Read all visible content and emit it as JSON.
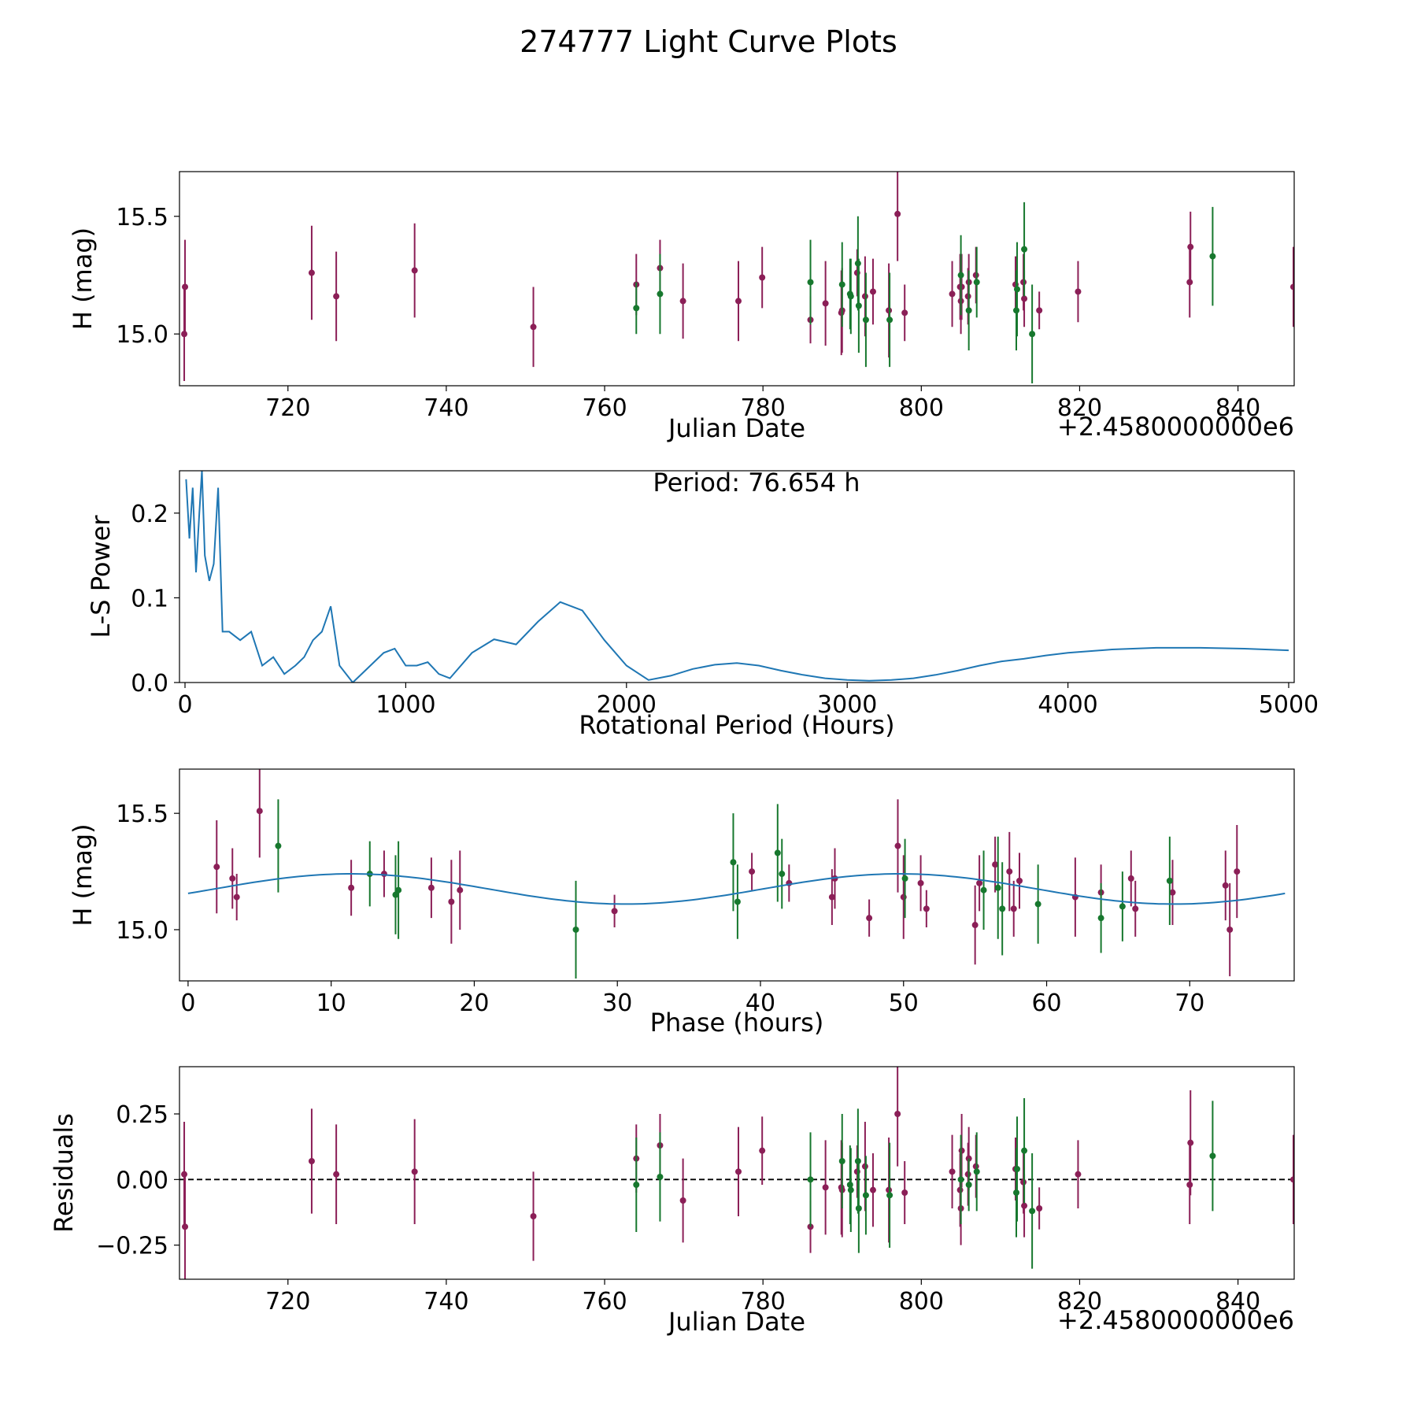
{
  "figure": {
    "title": "274777 Light Curve Plots"
  },
  "colors": {
    "r": "#8b1f57",
    "g": "#17782e",
    "curve": "#1f77b4",
    "zero": "#000000"
  },
  "chart_data": [
    {
      "name": "light-curve",
      "type": "scatter",
      "xlabel": "Julian Date",
      "ylabel": "H (mag)",
      "offset_text": "+2.4580000000e6",
      "xlim": [
        706.3,
        847.1
      ],
      "ylim": [
        14.78,
        15.69
      ],
      "xticks": [
        720,
        740,
        760,
        780,
        800,
        820,
        840
      ],
      "yticks": [
        15.0,
        15.5
      ],
      "tick_labels_x": [
        "720",
        "740",
        "760",
        "780",
        "800",
        "820",
        "840"
      ],
      "tick_labels_y": [
        "15.0",
        "15.5"
      ],
      "series": [
        {
          "name": "r",
          "color_key": "r",
          "x": [
            706.9,
            707.0,
            723.0,
            726.1,
            736.0,
            751.0,
            764.0,
            767.0,
            769.9,
            776.9,
            779.9,
            786.0,
            787.9,
            789.9,
            790.0,
            791.9,
            792.9,
            793.9,
            795.9,
            797.0,
            797.9,
            803.9,
            804.9,
            805.0,
            805.1,
            805.9,
            806.0,
            806.9,
            811.9,
            812.9,
            813.0,
            814.9,
            819.8,
            833.9,
            834.0,
            847.0
          ],
          "y": [
            15.0,
            15.2,
            15.26,
            15.16,
            15.27,
            15.03,
            15.21,
            15.28,
            15.14,
            15.14,
            15.24,
            15.06,
            15.13,
            15.09,
            15.1,
            15.26,
            15.16,
            15.18,
            15.1,
            15.51,
            15.09,
            15.17,
            15.2,
            15.14,
            15.2,
            15.16,
            15.22,
            15.25,
            15.21,
            15.22,
            15.15,
            15.1,
            15.18,
            15.22,
            15.37,
            15.2
          ],
          "err": [
            0.2,
            0.2,
            0.2,
            0.19,
            0.2,
            0.17,
            0.13,
            0.12,
            0.16,
            0.17,
            0.13,
            0.1,
            0.18,
            0.18,
            0.18,
            0.1,
            0.17,
            0.14,
            0.2,
            0.2,
            0.12,
            0.14,
            0.14,
            0.14,
            0.14,
            0.12,
            0.12,
            0.12,
            0.12,
            0.12,
            0.12,
            0.08,
            0.13,
            0.15,
            0.15,
            0.17
          ]
        },
        {
          "name": "g",
          "color_key": "g",
          "x": [
            764.0,
            767.0,
            786.0,
            790.0,
            791.0,
            791.1,
            792.0,
            792.1,
            793.0,
            796.0,
            805.0,
            806.0,
            807.0,
            812.0,
            812.1,
            813.0,
            814.0,
            836.8
          ],
          "y": [
            15.11,
            15.17,
            15.22,
            15.21,
            15.17,
            15.16,
            15.3,
            15.12,
            15.06,
            15.06,
            15.25,
            15.1,
            15.22,
            15.1,
            15.19,
            15.36,
            15.0,
            15.33
          ],
          "err": [
            0.11,
            0.17,
            0.18,
            0.18,
            0.15,
            0.16,
            0.2,
            0.2,
            0.2,
            0.2,
            0.17,
            0.17,
            0.15,
            0.17,
            0.2,
            0.2,
            0.21,
            0.21
          ]
        }
      ]
    },
    {
      "name": "periodogram",
      "type": "line",
      "xlabel": "Rotational Period (Hours)",
      "ylabel": "L-S Power",
      "xlim": [
        -25,
        5025
      ],
      "ylim": [
        0,
        0.25
      ],
      "xticks": [
        0,
        1000,
        2000,
        3000,
        4000,
        5000
      ],
      "yticks": [
        0.0,
        0.1,
        0.2
      ],
      "tick_labels_x": [
        "0",
        "1000",
        "2000",
        "3000",
        "4000",
        "5000"
      ],
      "tick_labels_y": [
        "0.0",
        "0.1",
        "0.2"
      ],
      "annotation": "Period: 76.654 h",
      "series": [
        {
          "name": "LS power",
          "color_key": "curve",
          "x": [
            5,
            20,
            35,
            50,
            65,
            76.654,
            90,
            110,
            130,
            150,
            170,
            200,
            250,
            300,
            350,
            400,
            450,
            500,
            540,
            580,
            620,
            660,
            700,
            760,
            820,
            900,
            950,
            1000,
            1050,
            1100,
            1150,
            1200,
            1300,
            1400,
            1500,
            1600,
            1700,
            1800,
            1900,
            2000,
            2100,
            2200,
            2300,
            2400,
            2500,
            2600,
            2700,
            2800,
            2900,
            3000,
            3100,
            3200,
            3300,
            3400,
            3500,
            3600,
            3700,
            3800,
            3900,
            4000,
            4200,
            4400,
            4600,
            4800,
            5000
          ],
          "y": [
            0.24,
            0.17,
            0.23,
            0.13,
            0.2,
            0.25,
            0.15,
            0.12,
            0.14,
            0.23,
            0.06,
            0.06,
            0.05,
            0.06,
            0.02,
            0.03,
            0.01,
            0.02,
            0.03,
            0.05,
            0.06,
            0.09,
            0.02,
            0.0,
            0.015,
            0.035,
            0.04,
            0.02,
            0.02,
            0.024,
            0.01,
            0.005,
            0.035,
            0.051,
            0.045,
            0.072,
            0.095,
            0.085,
            0.05,
            0.02,
            0.003,
            0.008,
            0.016,
            0.021,
            0.023,
            0.02,
            0.014,
            0.009,
            0.005,
            0.003,
            0.002,
            0.003,
            0.005,
            0.009,
            0.014,
            0.02,
            0.025,
            0.028,
            0.032,
            0.035,
            0.039,
            0.041,
            0.041,
            0.04,
            0.038
          ]
        }
      ]
    },
    {
      "name": "phase-fold",
      "type": "scatter",
      "xlabel": "Phase (hours)",
      "ylabel": "H (mag)",
      "xlim": [
        -0.6,
        77.3
      ],
      "ylim": [
        14.78,
        15.69
      ],
      "xticks": [
        0,
        10,
        20,
        30,
        40,
        50,
        60,
        70
      ],
      "yticks": [
        15.0,
        15.5
      ],
      "tick_labels_x": [
        "0",
        "10",
        "20",
        "30",
        "40",
        "50",
        "60",
        "70"
      ],
      "tick_labels_y": [
        "15.0",
        "15.5"
      ],
      "series": [
        {
          "name": "r",
          "color_key": "r",
          "x": [
            2.0,
            3.1,
            3.4,
            5.0,
            11.4,
            13.7,
            17.0,
            18.4,
            19.0,
            29.8,
            39.4,
            42.0,
            45.0,
            45.2,
            47.6,
            49.6,
            50.0,
            51.2,
            51.6,
            55.0,
            55.3,
            56.4,
            57.4,
            57.7,
            58.1,
            62.0,
            63.8,
            65.9,
            66.2,
            68.8,
            72.5,
            72.8,
            73.3
          ],
          "y": [
            15.27,
            15.22,
            15.14,
            15.51,
            15.18,
            15.24,
            15.18,
            15.12,
            15.17,
            15.08,
            15.25,
            15.2,
            15.14,
            15.22,
            15.05,
            15.36,
            15.14,
            15.2,
            15.09,
            15.02,
            15.2,
            15.28,
            15.25,
            15.09,
            15.21,
            15.14,
            15.16,
            15.22,
            15.09,
            15.16,
            15.19,
            15.0,
            15.25
          ],
          "err": [
            0.2,
            0.13,
            0.1,
            0.2,
            0.12,
            0.1,
            0.13,
            0.18,
            0.17,
            0.07,
            0.08,
            0.08,
            0.12,
            0.13,
            0.08,
            0.2,
            0.18,
            0.12,
            0.08,
            0.17,
            0.12,
            0.12,
            0.17,
            0.12,
            0.12,
            0.17,
            0.12,
            0.12,
            0.12,
            0.14,
            0.15,
            0.2,
            0.2
          ]
        },
        {
          "name": "g",
          "color_key": "g",
          "x": [
            6.3,
            12.7,
            14.5,
            14.7,
            27.1,
            38.1,
            38.4,
            41.2,
            41.5,
            50.1,
            55.6,
            56.6,
            56.9,
            59.4,
            63.8,
            65.3,
            68.6
          ],
          "y": [
            15.36,
            15.24,
            15.15,
            15.17,
            15.0,
            15.29,
            15.12,
            15.33,
            15.24,
            15.22,
            15.17,
            15.18,
            15.09,
            15.11,
            15.05,
            15.1,
            15.21
          ],
          "err": [
            0.2,
            0.14,
            0.17,
            0.21,
            0.21,
            0.21,
            0.16,
            0.21,
            0.15,
            0.17,
            0.17,
            0.22,
            0.2,
            0.17,
            0.15,
            0.15,
            0.19
          ]
        },
        {
          "name": "fit",
          "color_key": "curve",
          "type": "line",
          "mean": 15.175,
          "amp1": 0.065,
          "phase1": -0.3,
          "amp2": 0.0,
          "phase2": 0.0
        }
      ]
    },
    {
      "name": "residuals",
      "type": "scatter",
      "xlabel": "Julian Date",
      "ylabel": "Residuals",
      "offset_text": "+2.4580000000e6",
      "xlim": [
        706.3,
        847.1
      ],
      "ylim": [
        -0.38,
        0.43
      ],
      "xticks": [
        720,
        740,
        760,
        780,
        800,
        820,
        840
      ],
      "yticks": [
        0.25,
        0.0,
        -0.25
      ],
      "tick_labels_x": [
        "720",
        "740",
        "760",
        "780",
        "800",
        "820",
        "840"
      ],
      "tick_labels_y": [
        "0.25",
        "0.00",
        "−0.25"
      ],
      "zero_line": 0,
      "series": [
        {
          "name": "r",
          "color_key": "r",
          "x": [
            706.9,
            707.0,
            723.0,
            726.1,
            736.0,
            751.0,
            764.0,
            767.0,
            769.9,
            776.9,
            779.9,
            786.0,
            787.9,
            789.9,
            790.0,
            791.9,
            792.9,
            793.9,
            795.9,
            797.0,
            797.9,
            803.9,
            804.9,
            805.0,
            805.1,
            805.9,
            806.0,
            806.9,
            811.9,
            812.9,
            813.0,
            814.9,
            819.8,
            833.9,
            834.0,
            847.0
          ],
          "y": [
            0.02,
            -0.18,
            0.07,
            0.02,
            0.03,
            -0.14,
            0.08,
            0.13,
            -0.08,
            0.03,
            0.11,
            -0.18,
            -0.03,
            -0.03,
            -0.04,
            0.03,
            0.05,
            -0.04,
            -0.04,
            0.25,
            -0.05,
            0.03,
            -0.04,
            -0.11,
            0.11,
            0.02,
            0.08,
            0.05,
            0.04,
            -0.01,
            -0.1,
            -0.11,
            0.02,
            -0.02,
            0.14,
            0.0
          ],
          "err": [
            0.2,
            0.2,
            0.2,
            0.19,
            0.2,
            0.17,
            0.13,
            0.12,
            0.16,
            0.17,
            0.13,
            0.1,
            0.18,
            0.18,
            0.18,
            0.1,
            0.17,
            0.14,
            0.2,
            0.2,
            0.12,
            0.14,
            0.14,
            0.14,
            0.14,
            0.12,
            0.12,
            0.12,
            0.12,
            0.12,
            0.12,
            0.08,
            0.13,
            0.15,
            0.2,
            0.17
          ]
        },
        {
          "name": "g",
          "color_key": "g",
          "x": [
            764.0,
            767.0,
            786.0,
            790.0,
            791.0,
            791.1,
            792.0,
            792.1,
            793.0,
            796.0,
            805.0,
            806.0,
            807.0,
            812.0,
            812.1,
            813.0,
            814.0,
            836.8
          ],
          "y": [
            -0.02,
            0.01,
            0.0,
            0.07,
            -0.02,
            -0.04,
            0.07,
            -0.11,
            -0.06,
            -0.06,
            0.0,
            -0.02,
            0.03,
            -0.05,
            0.04,
            0.11,
            -0.12,
            0.09
          ],
          "err": [
            0.18,
            0.17,
            0.18,
            0.18,
            0.15,
            0.16,
            0.2,
            0.17,
            0.15,
            0.2,
            0.17,
            0.1,
            0.15,
            0.17,
            0.2,
            0.2,
            0.22,
            0.21
          ]
        }
      ]
    }
  ]
}
